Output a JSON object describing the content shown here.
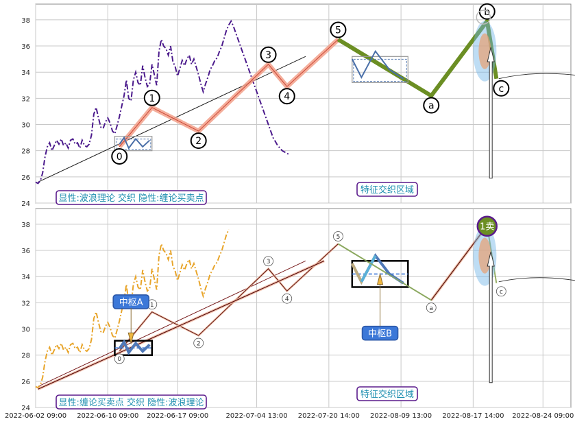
{
  "chart_data": [
    {
      "type": "line",
      "panel": "top",
      "ylim": [
        24,
        39.2
      ],
      "yticks": [
        24,
        26,
        28,
        30,
        32,
        34,
        36,
        38
      ],
      "grid": true,
      "price": {
        "t": [
          0,
          0.5,
          1,
          1.5,
          2,
          2.5,
          3,
          3.5,
          4,
          4.5,
          5,
          5.5,
          6,
          6.5,
          7,
          7.5,
          8,
          8.5,
          9,
          9.5,
          10,
          10.5,
          11,
          11.5,
          12,
          12.5,
          13,
          13.5,
          14,
          14.5,
          15,
          15.5,
          16,
          16.5,
          17,
          17.5,
          18,
          18.5,
          19,
          19.5,
          20,
          20.5,
          21,
          21.5,
          22,
          22.5,
          23,
          23.5,
          24,
          24.5,
          25,
          25.5,
          26,
          26.5,
          27,
          27.5,
          28,
          28.5,
          29,
          29.5,
          30,
          30.5,
          31,
          31.5,
          32,
          32.5,
          33,
          33.5,
          34,
          34.5,
          35,
          35.5,
          36,
          36.5,
          37,
          37.5,
          38,
          38.5,
          39,
          39.5,
          40,
          40.5,
          41,
          41.5,
          42,
          42.5,
          43,
          43.5,
          44,
          44.5,
          45,
          45.5,
          46,
          46.5,
          47,
          47.5,
          48,
          48.5,
          49,
          49.5,
          50,
          50.5,
          51,
          51.5,
          52,
          52.5,
          53,
          53.5,
          54,
          54.5
        ],
        "v": [
          25.6,
          25.5,
          25.7,
          26.3,
          27.5,
          28.3,
          28.6,
          28,
          28.4,
          28.8,
          28.5,
          28.9,
          28.4,
          28.6,
          28.2,
          28.8,
          28.9,
          28.5,
          28.6,
          28.2,
          28.8,
          28.4,
          28.3,
          28.5,
          29.2,
          30.8,
          31.3,
          30.5,
          29.8,
          29.7,
          30.2,
          30.5,
          30.1,
          29.5,
          29.3,
          29.9,
          30.6,
          31.4,
          32.2,
          33.4,
          32,
          31.8,
          33.4,
          34,
          33.2,
          33,
          34.5,
          33.6,
          32.9,
          33.1,
          34.6,
          33.8,
          33,
          35.6,
          36.5,
          36,
          35.8,
          35.3,
          36,
          34.8,
          34.4,
          33.7,
          34.3,
          34.9,
          34.5,
          35,
          35.3,
          34.6,
          35,
          34.4,
          33.8,
          33.1,
          32.5,
          33.1,
          33.6,
          34.2,
          34.5,
          34.9,
          35.1,
          35.6,
          36,
          36.6,
          37.2,
          37.6,
          37.9,
          37.5,
          37,
          36.5,
          36,
          35.5,
          35,
          34.5,
          34,
          33.5,
          33,
          32.5,
          32,
          31.5,
          31,
          30.5,
          30,
          29.5,
          29,
          28.7,
          28.4,
          28.2,
          28,
          27.9,
          27.8,
          27.7
        ]
      },
      "swing_points": [
        {
          "label": "0",
          "t": 18,
          "v": 28.3
        },
        {
          "label": "1",
          "t": 25,
          "v": 31.3
        },
        {
          "label": "2",
          "t": 35,
          "v": 29.5
        },
        {
          "label": "3",
          "t": 50,
          "v": 34.6
        },
        {
          "label": "4",
          "t": 54,
          "v": 32.9
        },
        {
          "label": "5",
          "t": 65,
          "v": 36.5
        },
        {
          "label": "a",
          "t": 85,
          "v": 32.2
        },
        {
          "label": "b",
          "t": 97,
          "v": 37.9
        },
        {
          "label": "c",
          "t": 99,
          "v": 33.5
        }
      ],
      "annotations": [
        {
          "text": "显性:波浪理论 交织 隐性:缠论买卖点"
        },
        {
          "text": "特征交织区域"
        }
      ]
    },
    {
      "type": "line",
      "panel": "bottom",
      "ylim": [
        24,
        39.2
      ],
      "yticks": [
        24,
        26,
        28,
        30,
        32,
        34,
        36,
        38
      ],
      "grid": true,
      "swing_points": [
        {
          "label": "0",
          "t": 18,
          "v": 28.3
        },
        {
          "label": "1",
          "t": 25,
          "v": 31.3
        },
        {
          "label": "2",
          "t": 35,
          "v": 29.5
        },
        {
          "label": "3",
          "t": 50,
          "v": 34.6
        },
        {
          "label": "4",
          "t": 54,
          "v": 32.9
        },
        {
          "label": "5",
          "t": 65,
          "v": 36.5
        },
        {
          "label": "a",
          "t": 85,
          "v": 32.2
        },
        {
          "label": "c",
          "t": 99,
          "v": 33.5
        }
      ],
      "zhongshu": [
        {
          "name": "中枢A",
          "t0": 17,
          "t1": 25,
          "v0": 28,
          "v1": 29.1
        },
        {
          "name": "中枢B",
          "t0": 68,
          "t1": 80,
          "v0": 33.2,
          "v1": 35.2
        }
      ],
      "sell_point": {
        "label": "1卖",
        "t": 97,
        "v": 37.9
      },
      "annotations": [
        {
          "text": "显性:缠论买卖点 交织 隐性:波浪理论"
        },
        {
          "text": "特征交织区域"
        }
      ]
    }
  ],
  "x_axis": {
    "ticks": [
      "2022-06-02 09:00",
      "2022-06-10 09:00",
      "2022-06-17 09:00",
      "2022-07-04 13:00",
      "2022-07-20 14:00",
      "2022-08-09 13:00",
      "2022-08-17 14:00",
      "2022-08-24 09:00"
    ]
  },
  "colors": {
    "grid": "#c8c8c8",
    "price_top": "#4b1a8c",
    "price_bottom": "#e8a52b",
    "wave_fill": "#f2a08a",
    "abc_green": "#6b8e23",
    "zone": "#6fb3e6",
    "callout": "#3c78d8",
    "label_border": "#5a1a8c",
    "label_text": "#1f8fb0"
  }
}
